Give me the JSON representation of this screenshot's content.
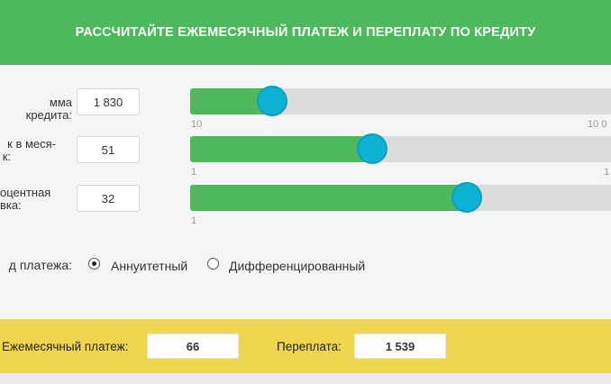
{
  "header": {
    "title": "РАССЧИТАЙТЕ ЕЖЕМЕСЯЧНЫЙ ПЛАТЕЖ И ПЕРЕПЛАТУ ПО КРЕДИТУ"
  },
  "fields": [
    {
      "label": "мма кредита:",
      "value": "1 830",
      "fill_fraction": 0.19,
      "min_label": "10",
      "max_label": "10 0"
    },
    {
      "label": "к в меся-\nк:",
      "value": "51",
      "fill_fraction": 0.42,
      "min_label": "1",
      "max_label": "1"
    },
    {
      "label": "оцентная\nвка:",
      "value": "32",
      "fill_fraction": 0.64,
      "min_label": "1",
      "max_label": ""
    }
  ],
  "payment_type": {
    "label": "д платежа:",
    "options": [
      {
        "label": "Аннуитетный",
        "checked": true
      },
      {
        "label": "Дифференцированный",
        "checked": false
      }
    ]
  },
  "result": {
    "monthly_label": "Ежемесячный платеж:",
    "monthly_value": "66",
    "overpay_label": "Переплата:",
    "overpay_value": "1 539"
  },
  "colors": {
    "green": "#4db85c",
    "knob": "#0db1d1",
    "yellow": "#f0d54f"
  }
}
